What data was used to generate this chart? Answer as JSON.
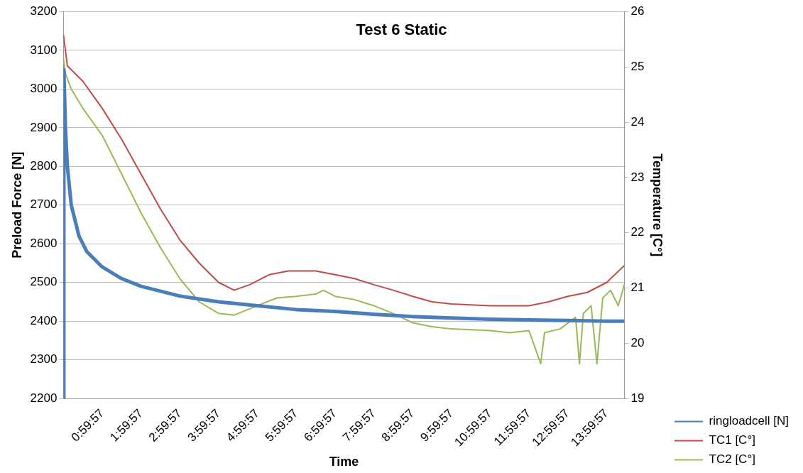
{
  "chart_data": {
    "type": "line",
    "title": "Test 6 Static",
    "xlabel": "Time",
    "ylabel": "Preload Force [N]",
    "y2label": "Temperature [C°]",
    "xlim": [
      0,
      14.46
    ],
    "xticks": [
      {
        "value": 0.99917,
        "label": "0:59:57"
      },
      {
        "value": 1.99917,
        "label": "1:59:57"
      },
      {
        "value": 2.99917,
        "label": "2:59:57"
      },
      {
        "value": 3.99917,
        "label": "3:59:57"
      },
      {
        "value": 4.99917,
        "label": "4:59:57"
      },
      {
        "value": 5.99917,
        "label": "5:59:57"
      },
      {
        "value": 6.99917,
        "label": "6:59:57"
      },
      {
        "value": 7.99917,
        "label": "7:59:57"
      },
      {
        "value": 8.99917,
        "label": "8:59:57"
      },
      {
        "value": 9.99917,
        "label": "9:59:57"
      },
      {
        "value": 10.99917,
        "label": "10:59:57"
      },
      {
        "value": 11.99917,
        "label": "11:59:57"
      },
      {
        "value": 12.99917,
        "label": "12:59:57"
      },
      {
        "value": 13.99917,
        "label": "13:59:57"
      }
    ],
    "ylim": [
      2200,
      3200
    ],
    "yticks": [
      2200,
      2300,
      2400,
      2500,
      2600,
      2700,
      2800,
      2900,
      3000,
      3100,
      3200
    ],
    "y2lim": [
      19,
      26
    ],
    "y2ticks": [
      19,
      20,
      21,
      22,
      23,
      24,
      25,
      26
    ],
    "grid": "y",
    "legend": "right",
    "marker": "none",
    "line_style": "solid",
    "series": [
      {
        "name": "ringloadcell [N]",
        "color": "#4a7ebb",
        "x": [
          0,
          0.01,
          0.05,
          0.1,
          0.2,
          0.4,
          0.6,
          1,
          1.5,
          2,
          3,
          4,
          5,
          6,
          7,
          8,
          9,
          10,
          11,
          12,
          13,
          14,
          14.46
        ],
        "values": [
          2200,
          3050,
          2900,
          2800,
          2700,
          2620,
          2580,
          2540,
          2510,
          2490,
          2465,
          2450,
          2440,
          2430,
          2425,
          2418,
          2412,
          2408,
          2405,
          2403,
          2402,
          2400,
          2400
        ]
      },
      {
        "name": "TC1 [C°]",
        "color": "#be4b48",
        "axis": "y2",
        "x": [
          0,
          0.1,
          0.5,
          1,
          1.5,
          2,
          2.5,
          3,
          3.5,
          4,
          4.4,
          4.8,
          5.3,
          5.8,
          6.5,
          7,
          7.5,
          8,
          8.5,
          9,
          9.5,
          10,
          11,
          12,
          12.5,
          13,
          13.5,
          14,
          14.46
        ],
        "values": [
          25.58,
          25.02,
          24.74,
          24.25,
          23.69,
          23.06,
          22.43,
          21.87,
          21.45,
          21.1,
          20.96,
          21.06,
          21.24,
          21.31,
          21.31,
          21.24,
          21.17,
          21.06,
          20.96,
          20.85,
          20.75,
          20.71,
          20.68,
          20.68,
          20.75,
          20.85,
          20.92,
          21.1,
          21.41
        ]
      },
      {
        "name": "TC2 [C°]",
        "color": "#98b954",
        "axis": "y2",
        "x": [
          0,
          0.05,
          0.2,
          0.5,
          1,
          1.5,
          2,
          2.5,
          3,
          3.5,
          4,
          4.4,
          5,
          5.5,
          6,
          6.5,
          6.7,
          7,
          7.5,
          8,
          8.5,
          9,
          9.5,
          10,
          11,
          11.5,
          12,
          12.3,
          12.4,
          12.8,
          13.2,
          13.3,
          13.4,
          13.6,
          13.75,
          13.9,
          14.1,
          14.3,
          14.46
        ],
        "values": [
          25.16,
          24.88,
          24.6,
          24.25,
          23.76,
          23.06,
          22.36,
          21.73,
          21.17,
          20.75,
          20.54,
          20.51,
          20.68,
          20.82,
          20.85,
          20.89,
          20.96,
          20.85,
          20.79,
          20.68,
          20.54,
          20.37,
          20.3,
          20.26,
          20.23,
          20.19,
          20.23,
          19.63,
          20.19,
          20.26,
          20.47,
          19.63,
          20.54,
          20.68,
          19.63,
          20.82,
          20.96,
          20.68,
          21.07
        ]
      }
    ]
  }
}
